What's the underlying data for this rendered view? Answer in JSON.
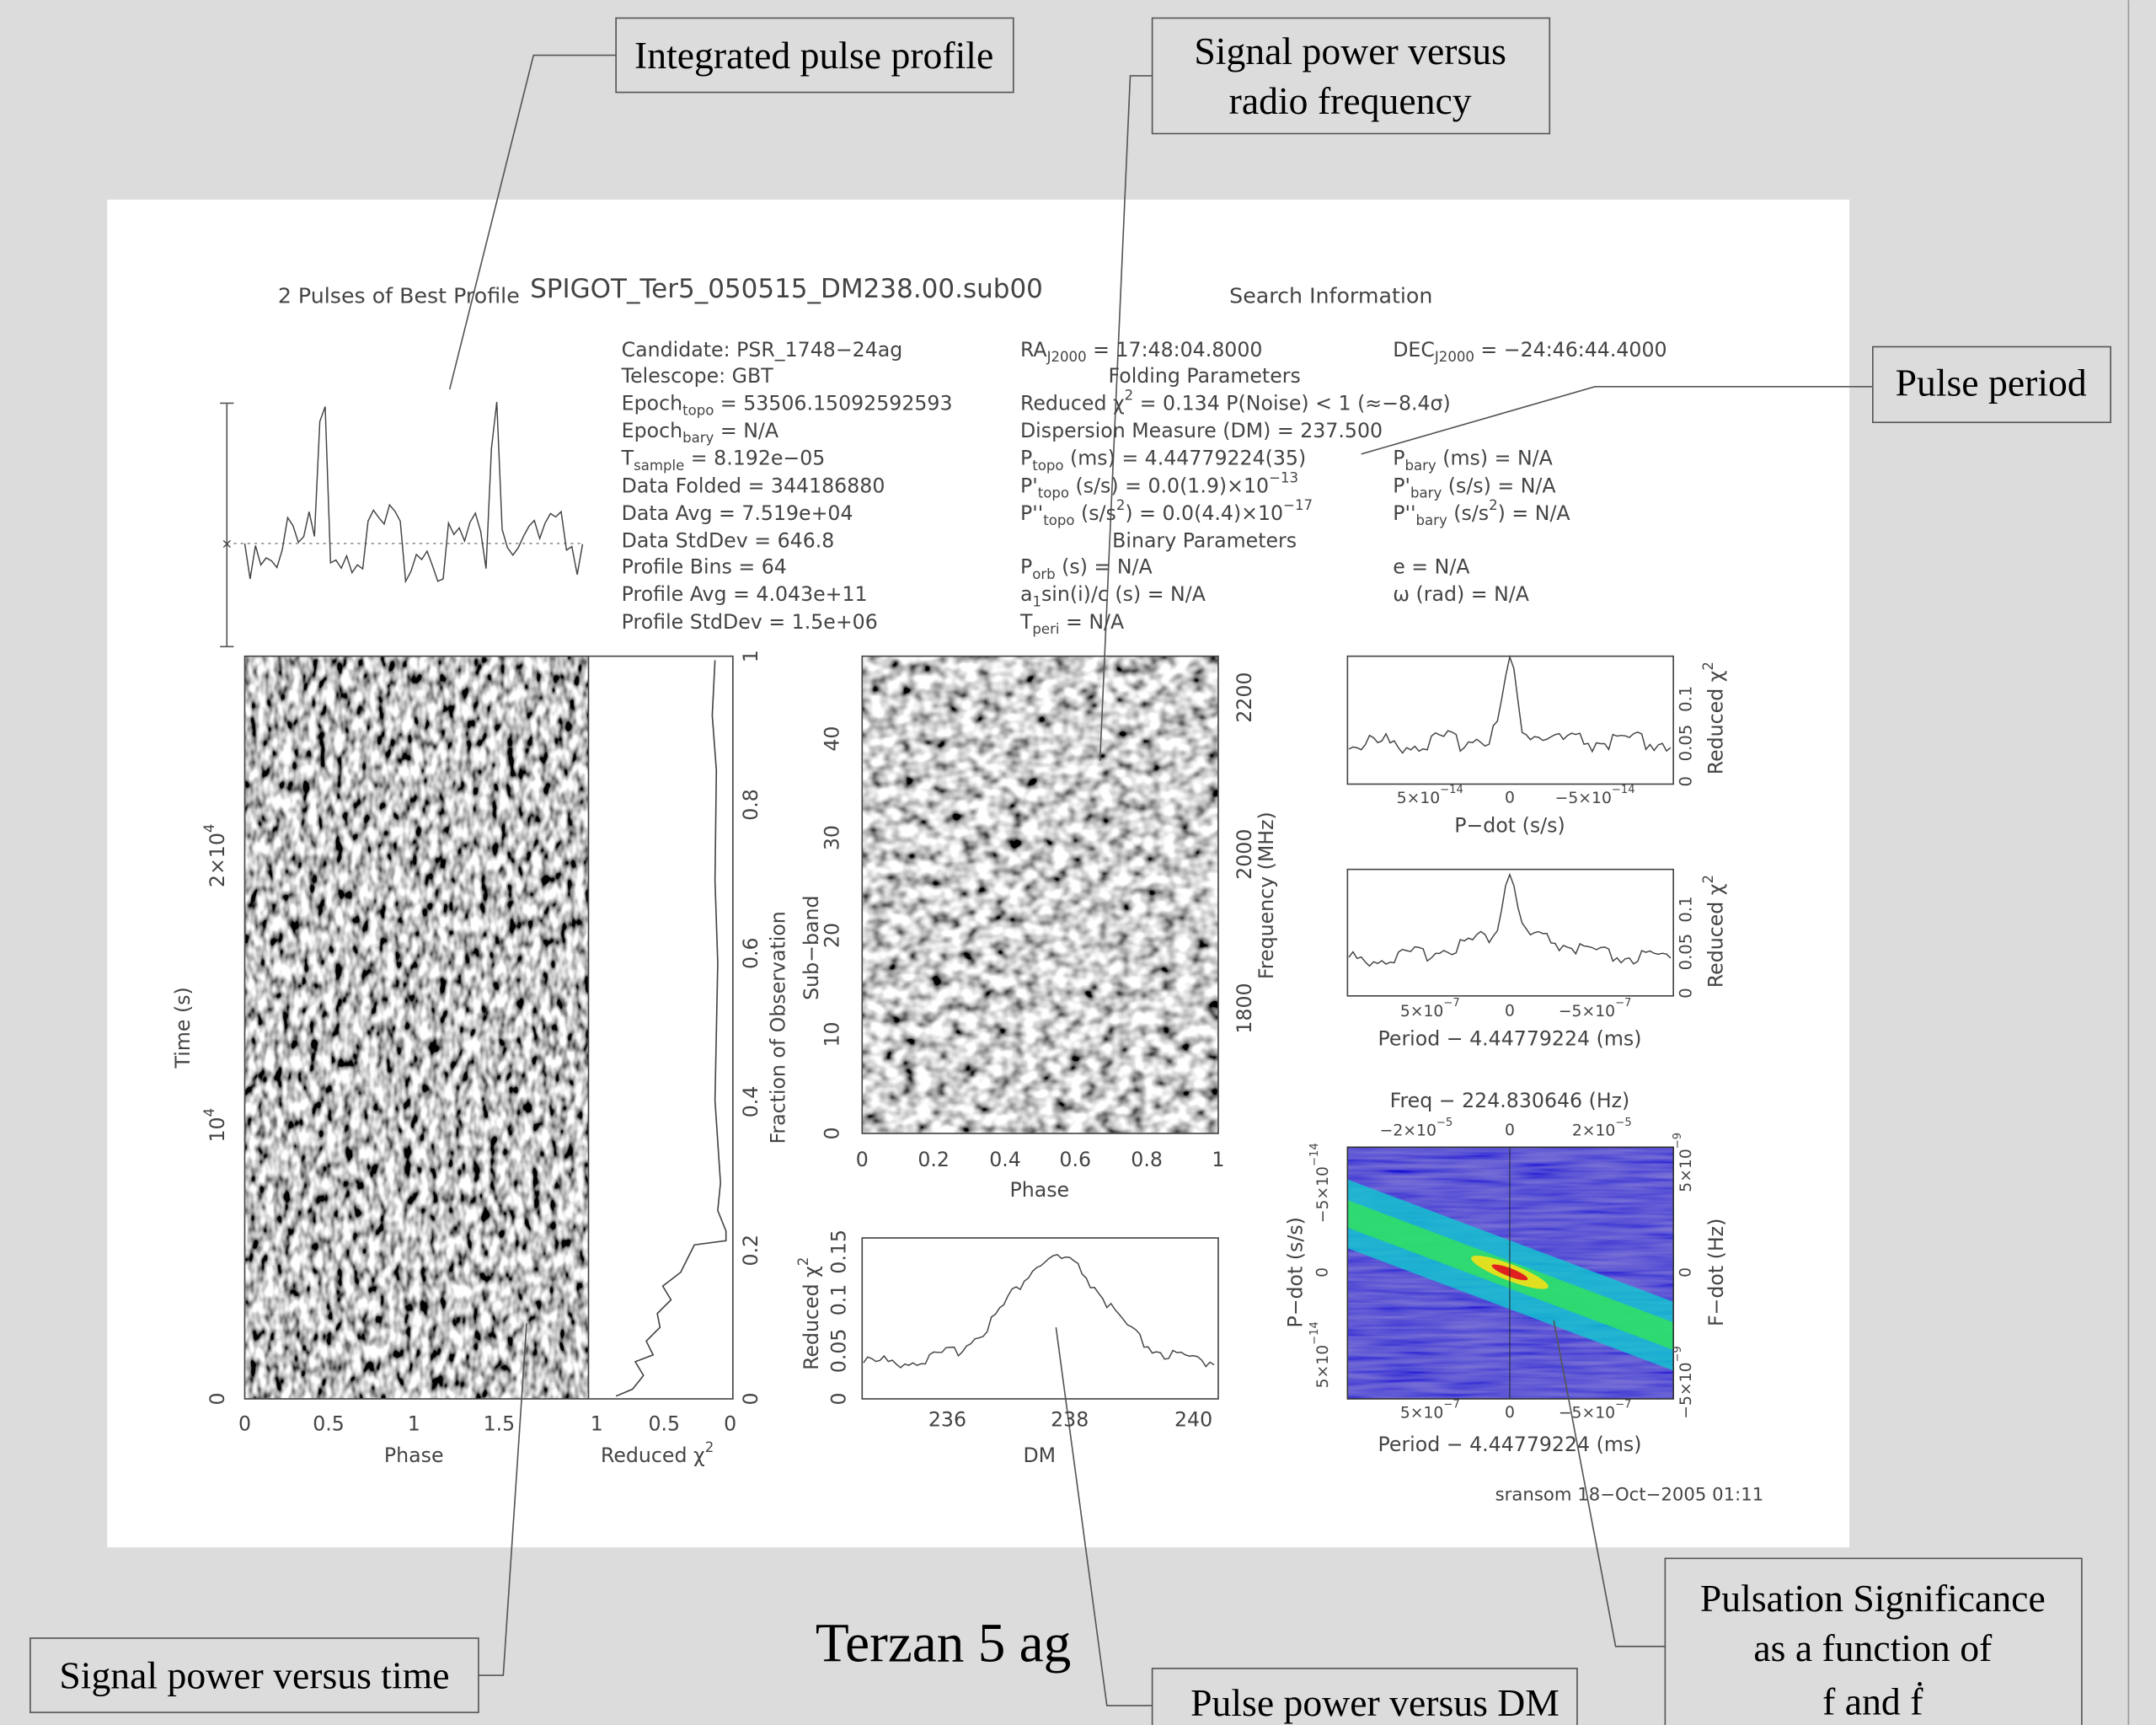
{
  "figure": {
    "title": "SPIGOT_Ter5_050515_DM238.00.sub00",
    "profile_title": "2 Pulses of Best Profile",
    "search_title": "Search Information",
    "info_left": [
      [
        {
          "t": "Candidate:  PSR_1748−24ag"
        }
      ],
      [
        {
          "t": "Telescope:  GBT"
        }
      ],
      [
        {
          "t": "Epoch"
        },
        {
          "sub": "topo"
        },
        {
          "t": " = 53506.15092592593"
        }
      ],
      [
        {
          "t": "Epoch"
        },
        {
          "sub": "bary"
        },
        {
          "t": " = N/A"
        }
      ],
      [
        {
          "t": "T"
        },
        {
          "sub": "sample"
        },
        {
          "t": "        =  8.192e−05"
        }
      ],
      [
        {
          "t": "Data Folded     =  344186880"
        }
      ],
      [
        {
          "t": "Data Avg        =  7.519e+04"
        }
      ],
      [
        {
          "t": "Data StdDev     =  646.8"
        }
      ],
      [
        {
          "t": "Profile Bins    =  64"
        }
      ],
      [
        {
          "t": "Profile Avg     =  4.043e+11"
        }
      ],
      [
        {
          "t": "Profile StdDev  =  1.5e+06"
        }
      ]
    ],
    "info_mid": [
      [
        {
          "t": "RA"
        },
        {
          "sub": "J2000"
        },
        {
          "t": " = 17:48:04.8000"
        }
      ],
      [
        {
          "t": "Folding Parameters"
        }
      ],
      [
        {
          "t": "Reduced χ"
        },
        {
          "sup": "2"
        },
        {
          "t": " = 0.134   P(Noise) < 1   (≈−8.4σ)"
        }
      ],
      [
        {
          "t": "Dispersion Measure (DM) = 237.500"
        }
      ],
      [
        {
          "t": "P"
        },
        {
          "sub": "topo"
        },
        {
          "t": " (ms) =  4.44779224(35)"
        }
      ],
      [
        {
          "t": "P'"
        },
        {
          "sub": "topo"
        },
        {
          "t": " (s/s) = 0.0(1.9)×10"
        },
        {
          "sup": "−13"
        }
      ],
      [
        {
          "t": "P''"
        },
        {
          "sub": "topo"
        },
        {
          "t": " (s/s"
        },
        {
          "sup": "2"
        },
        {
          "t": ") = 0.0(4.4)×10"
        },
        {
          "sup": "−17"
        }
      ],
      [
        {
          "t": "Binary Parameters"
        }
      ],
      [
        {
          "t": "P"
        },
        {
          "sub": "orb"
        },
        {
          "t": " (s) = N/A"
        }
      ],
      [
        {
          "t": "a"
        },
        {
          "sub": "1"
        },
        {
          "t": "sin(i)/c (s) = N/A"
        }
      ],
      [
        {
          "t": "T"
        },
        {
          "sub": "peri"
        },
        {
          "t": " = N/A"
        }
      ]
    ],
    "info_right": [
      [
        {
          "t": "DEC"
        },
        {
          "sub": "J2000"
        },
        {
          "t": " = −24:46:44.4000"
        }
      ],
      [
        {
          "t": "P"
        },
        {
          "sub": "bary"
        },
        {
          "t": " (ms) = N/A"
        }
      ],
      [
        {
          "t": "P'"
        },
        {
          "sub": "bary"
        },
        {
          "t": " (s/s) = N/A"
        }
      ],
      [
        {
          "t": "P''"
        },
        {
          "sub": "bary"
        },
        {
          "t": " (s/s"
        },
        {
          "sup": "2"
        },
        {
          "t": ") = N/A"
        }
      ],
      [
        {
          "t": "e = N/A"
        }
      ],
      [
        {
          "t": "ω (rad) = N/A"
        }
      ]
    ],
    "panels": {
      "time_phase": {
        "xticks": [
          "0",
          "0.5",
          "1",
          "1.5"
        ],
        "xlabel": "Phase",
        "ylabel": "Time (s)",
        "yticks": [
          "0",
          [
            {
              "t": "10"
            },
            {
              "sup": "4"
            }
          ],
          [
            {
              "t": "2×10"
            },
            {
              "sup": "4"
            }
          ]
        ]
      },
      "chi_fraction": {
        "xticks": [
          "1",
          "0.5",
          "0"
        ],
        "xlabel": [
          {
            "t": "Reduced χ"
          },
          {
            "sup": "2"
          }
        ],
        "ylabel": "Fraction of Observation",
        "yticks": [
          "0",
          "0.2",
          "0.4",
          "0.6",
          "0.8",
          "1"
        ]
      },
      "subband": {
        "xticks": [
          "0",
          "0.2",
          "0.4",
          "0.6",
          "0.8",
          "1"
        ],
        "xlabel": "Phase",
        "ylabel": "Sub−band",
        "yticks": [
          "0",
          "10",
          "20",
          "30",
          "40"
        ],
        "y2label": "Frequency (MHz)",
        "y2ticks": [
          "1800",
          "2000",
          "2200"
        ]
      },
      "dm": {
        "xticks": [
          "236",
          "238",
          "240"
        ],
        "xlabel": "DM",
        "ylabel": [
          {
            "t": "Reduced χ"
          },
          {
            "sup": "2"
          }
        ],
        "yticks": [
          "0",
          "0.05",
          "0.1",
          "0.15"
        ]
      },
      "pdot": {
        "xticks": [
          [
            {
              "t": "5×10"
            },
            {
              "sup": "−14"
            }
          ],
          "0",
          [
            {
              "t": "−5×10"
            },
            {
              "sup": "−14"
            }
          ]
        ],
        "xlabel": "P−dot (s/s)",
        "y2label": [
          {
            "t": "Reduced χ"
          },
          {
            "sup": "2"
          }
        ],
        "y2ticks": [
          "0",
          "0.05",
          "0.1"
        ]
      },
      "period": {
        "xticks": [
          [
            {
              "t": "5×10"
            },
            {
              "sup": "−7"
            }
          ],
          "0",
          [
            {
              "t": "−5×10"
            },
            {
              "sup": "−7"
            }
          ]
        ],
        "xlabel": "Period − 4.44779224 (ms)",
        "y2label": [
          {
            "t": "Reduced χ"
          },
          {
            "sup": "2"
          }
        ],
        "y2ticks": [
          "0",
          "0.05",
          "0.1"
        ]
      },
      "fdot": {
        "title": "Freq − 224.830646 (Hz)",
        "x2ticks": [
          [
            {
              "t": "−2×10"
            },
            {
              "sup": "−5"
            }
          ],
          "0",
          [
            {
              "t": "2×10"
            },
            {
              "sup": "−5"
            }
          ]
        ],
        "xticks": [
          [
            {
              "t": "5×10"
            },
            {
              "sup": "−7"
            }
          ],
          "0",
          [
            {
              "t": "−5×10"
            },
            {
              "sup": "−7"
            }
          ]
        ],
        "xlabel": "Period − 4.44779224 (ms)",
        "ylabel": "P−dot (s/s)",
        "yticks": [
          [
            {
              "t": "5×10"
            },
            {
              "sup": "−14"
            }
          ],
          "0",
          [
            {
              "t": "−5×10"
            },
            {
              "sup": "−14"
            }
          ]
        ],
        "y2label": "F−dot (Hz)",
        "y2ticks": [
          [
            {
              "t": "−5×10"
            },
            {
              "sup": "−9"
            }
          ],
          "0",
          [
            {
              "t": "5×10"
            },
            {
              "sup": "−9"
            }
          ]
        ]
      }
    },
    "footer": "sransom 18−Oct−2005 01:11"
  },
  "callouts": {
    "profile": [
      "Integrated pulse profile"
    ],
    "frequency": [
      "Signal power versus",
      "radio frequency"
    ],
    "period": [
      "Pulse period"
    ],
    "time": [
      "Signal power versus time"
    ],
    "dm": [
      "Pulse power versus DM"
    ],
    "significance": [
      "Pulsation Significance",
      "as a function of",
      "f and ḟ"
    ]
  },
  "caption": "Terzan 5 ag"
}
